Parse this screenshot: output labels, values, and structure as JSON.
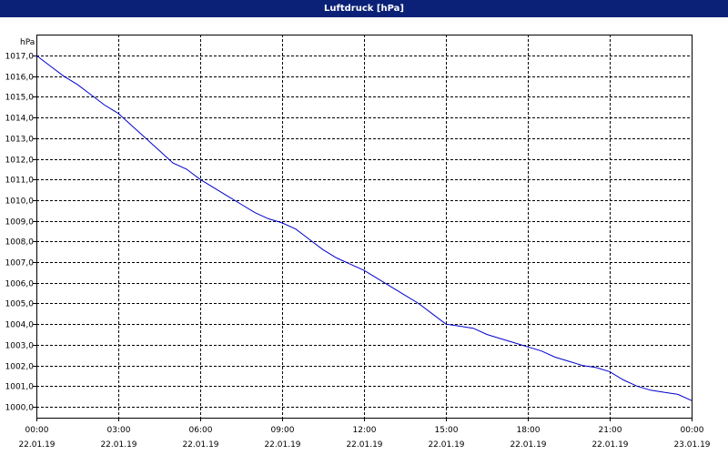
{
  "window": {
    "title": "Luftdruck [hPa]"
  },
  "chart_data": {
    "type": "line",
    "title": "Luftdruck [hPa]",
    "ylabel": "hPa",
    "xlabel": "",
    "ylim": [
      1000.0,
      1017.0
    ],
    "xlim": [
      "22.01.19 00:00",
      "23.01.19 00:00"
    ],
    "y_ticks": [
      "1000,0",
      "1001,0",
      "1002,0",
      "1003,0",
      "1004,0",
      "1005,0",
      "1006,0",
      "1007,0",
      "1008,0",
      "1009,0",
      "1010,0",
      "1011,0",
      "1012,0",
      "1013,0",
      "1014,0",
      "1015,0",
      "1016,0",
      "1017,0"
    ],
    "x_ticks": [
      {
        "time": "00:00",
        "date": "22.01.19"
      },
      {
        "time": "03:00",
        "date": "22.01.19"
      },
      {
        "time": "06:00",
        "date": "22.01.19"
      },
      {
        "time": "09:00",
        "date": "22.01.19"
      },
      {
        "time": "12:00",
        "date": "22.01.19"
      },
      {
        "time": "15:00",
        "date": "22.01.19"
      },
      {
        "time": "18:00",
        "date": "22.01.19"
      },
      {
        "time": "21:00",
        "date": "22.01.19"
      },
      {
        "time": "00:00",
        "date": "23.01.19"
      }
    ],
    "grid": true,
    "series": [
      {
        "color": "#0000cc",
        "x": [
          "22.01.19 00:00",
          "22.01.19 00:30",
          "22.01.19 01:00",
          "22.01.19 01:30",
          "22.01.19 02:00",
          "22.01.19 02:30",
          "22.01.19 03:00",
          "22.01.19 03:30",
          "22.01.19 04:00",
          "22.01.19 04:30",
          "22.01.19 05:00",
          "22.01.19 05:30",
          "22.01.19 06:00",
          "22.01.19 06:30",
          "22.01.19 07:00",
          "22.01.19 07:30",
          "22.01.19 08:00",
          "22.01.19 08:30",
          "22.01.19 09:00",
          "22.01.19 09:30",
          "22.01.19 10:00",
          "22.01.19 10:30",
          "22.01.19 11:00",
          "22.01.19 11:30",
          "22.01.19 12:00",
          "22.01.19 12:30",
          "22.01.19 13:00",
          "22.01.19 13:30",
          "22.01.19 14:00",
          "22.01.19 14:30",
          "22.01.19 15:00",
          "22.01.19 15:30",
          "22.01.19 16:00",
          "22.01.19 16:30",
          "22.01.19 17:00",
          "22.01.19 17:30",
          "22.01.19 18:00",
          "22.01.19 18:30",
          "22.01.19 19:00",
          "22.01.19 19:30",
          "22.01.19 20:00",
          "22.01.19 20:30",
          "22.01.19 21:00",
          "22.01.19 21:30",
          "22.01.19 22:00",
          "22.01.19 22:30",
          "22.01.19 23:00",
          "22.01.19 23:30",
          "23.01.19 00:00"
        ],
        "values": [
          1017.0,
          1016.5,
          1016.0,
          1015.6,
          1015.1,
          1014.6,
          1014.2,
          1013.6,
          1013.0,
          1012.4,
          1011.8,
          1011.5,
          1011.0,
          1010.6,
          1010.2,
          1009.8,
          1009.4,
          1009.1,
          1008.9,
          1008.6,
          1008.1,
          1007.6,
          1007.2,
          1006.9,
          1006.6,
          1006.2,
          1005.8,
          1005.4,
          1005.0,
          1004.5,
          1004.0,
          1003.9,
          1003.8,
          1003.5,
          1003.3,
          1003.1,
          1002.9,
          1002.7,
          1002.4,
          1002.2,
          1002.0,
          1001.9,
          1001.7,
          1001.3,
          1001.0,
          1000.8,
          1000.7,
          1000.6,
          1000.3
        ]
      }
    ]
  }
}
